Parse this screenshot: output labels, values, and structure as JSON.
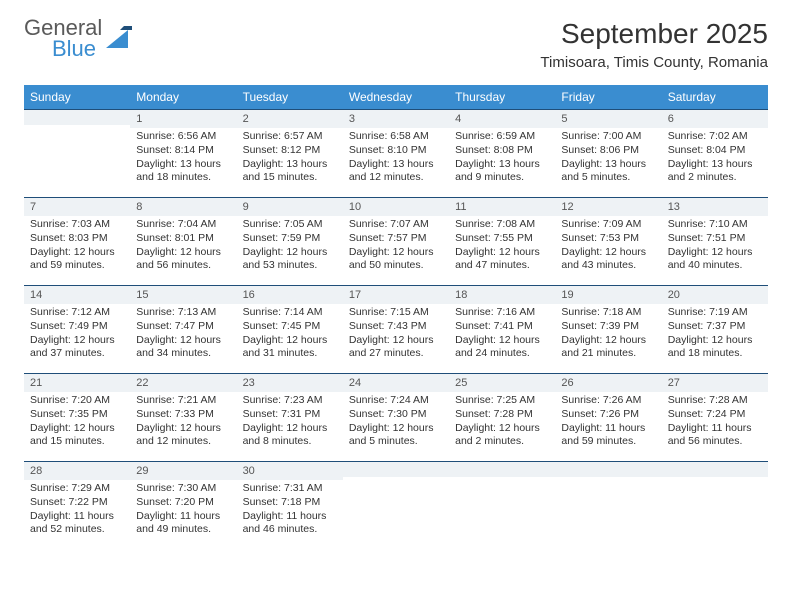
{
  "logo": {
    "line1": "General",
    "line2": "Blue",
    "color1": "#5a5a5a",
    "color2": "#3a8dd0"
  },
  "title": "September 2025",
  "location": "Timisoara, Timis County, Romania",
  "header_bg": "#3a8dd0",
  "header_fg": "#ffffff",
  "daynum_bg": "#eef2f5",
  "daynum_border": "#1f4e79",
  "weekdays": [
    "Sunday",
    "Monday",
    "Tuesday",
    "Wednesday",
    "Thursday",
    "Friday",
    "Saturday"
  ],
  "weeks": [
    [
      {
        "n": "",
        "lines": []
      },
      {
        "n": "1",
        "lines": [
          "Sunrise: 6:56 AM",
          "Sunset: 8:14 PM",
          "Daylight: 13 hours",
          "and 18 minutes."
        ]
      },
      {
        "n": "2",
        "lines": [
          "Sunrise: 6:57 AM",
          "Sunset: 8:12 PM",
          "Daylight: 13 hours",
          "and 15 minutes."
        ]
      },
      {
        "n": "3",
        "lines": [
          "Sunrise: 6:58 AM",
          "Sunset: 8:10 PM",
          "Daylight: 13 hours",
          "and 12 minutes."
        ]
      },
      {
        "n": "4",
        "lines": [
          "Sunrise: 6:59 AM",
          "Sunset: 8:08 PM",
          "Daylight: 13 hours",
          "and 9 minutes."
        ]
      },
      {
        "n": "5",
        "lines": [
          "Sunrise: 7:00 AM",
          "Sunset: 8:06 PM",
          "Daylight: 13 hours",
          "and 5 minutes."
        ]
      },
      {
        "n": "6",
        "lines": [
          "Sunrise: 7:02 AM",
          "Sunset: 8:04 PM",
          "Daylight: 13 hours",
          "and 2 minutes."
        ]
      }
    ],
    [
      {
        "n": "7",
        "lines": [
          "Sunrise: 7:03 AM",
          "Sunset: 8:03 PM",
          "Daylight: 12 hours",
          "and 59 minutes."
        ]
      },
      {
        "n": "8",
        "lines": [
          "Sunrise: 7:04 AM",
          "Sunset: 8:01 PM",
          "Daylight: 12 hours",
          "and 56 minutes."
        ]
      },
      {
        "n": "9",
        "lines": [
          "Sunrise: 7:05 AM",
          "Sunset: 7:59 PM",
          "Daylight: 12 hours",
          "and 53 minutes."
        ]
      },
      {
        "n": "10",
        "lines": [
          "Sunrise: 7:07 AM",
          "Sunset: 7:57 PM",
          "Daylight: 12 hours",
          "and 50 minutes."
        ]
      },
      {
        "n": "11",
        "lines": [
          "Sunrise: 7:08 AM",
          "Sunset: 7:55 PM",
          "Daylight: 12 hours",
          "and 47 minutes."
        ]
      },
      {
        "n": "12",
        "lines": [
          "Sunrise: 7:09 AM",
          "Sunset: 7:53 PM",
          "Daylight: 12 hours",
          "and 43 minutes."
        ]
      },
      {
        "n": "13",
        "lines": [
          "Sunrise: 7:10 AM",
          "Sunset: 7:51 PM",
          "Daylight: 12 hours",
          "and 40 minutes."
        ]
      }
    ],
    [
      {
        "n": "14",
        "lines": [
          "Sunrise: 7:12 AM",
          "Sunset: 7:49 PM",
          "Daylight: 12 hours",
          "and 37 minutes."
        ]
      },
      {
        "n": "15",
        "lines": [
          "Sunrise: 7:13 AM",
          "Sunset: 7:47 PM",
          "Daylight: 12 hours",
          "and 34 minutes."
        ]
      },
      {
        "n": "16",
        "lines": [
          "Sunrise: 7:14 AM",
          "Sunset: 7:45 PM",
          "Daylight: 12 hours",
          "and 31 minutes."
        ]
      },
      {
        "n": "17",
        "lines": [
          "Sunrise: 7:15 AM",
          "Sunset: 7:43 PM",
          "Daylight: 12 hours",
          "and 27 minutes."
        ]
      },
      {
        "n": "18",
        "lines": [
          "Sunrise: 7:16 AM",
          "Sunset: 7:41 PM",
          "Daylight: 12 hours",
          "and 24 minutes."
        ]
      },
      {
        "n": "19",
        "lines": [
          "Sunrise: 7:18 AM",
          "Sunset: 7:39 PM",
          "Daylight: 12 hours",
          "and 21 minutes."
        ]
      },
      {
        "n": "20",
        "lines": [
          "Sunrise: 7:19 AM",
          "Sunset: 7:37 PM",
          "Daylight: 12 hours",
          "and 18 minutes."
        ]
      }
    ],
    [
      {
        "n": "21",
        "lines": [
          "Sunrise: 7:20 AM",
          "Sunset: 7:35 PM",
          "Daylight: 12 hours",
          "and 15 minutes."
        ]
      },
      {
        "n": "22",
        "lines": [
          "Sunrise: 7:21 AM",
          "Sunset: 7:33 PM",
          "Daylight: 12 hours",
          "and 12 minutes."
        ]
      },
      {
        "n": "23",
        "lines": [
          "Sunrise: 7:23 AM",
          "Sunset: 7:31 PM",
          "Daylight: 12 hours",
          "and 8 minutes."
        ]
      },
      {
        "n": "24",
        "lines": [
          "Sunrise: 7:24 AM",
          "Sunset: 7:30 PM",
          "Daylight: 12 hours",
          "and 5 minutes."
        ]
      },
      {
        "n": "25",
        "lines": [
          "Sunrise: 7:25 AM",
          "Sunset: 7:28 PM",
          "Daylight: 12 hours",
          "and 2 minutes."
        ]
      },
      {
        "n": "26",
        "lines": [
          "Sunrise: 7:26 AM",
          "Sunset: 7:26 PM",
          "Daylight: 11 hours",
          "and 59 minutes."
        ]
      },
      {
        "n": "27",
        "lines": [
          "Sunrise: 7:28 AM",
          "Sunset: 7:24 PM",
          "Daylight: 11 hours",
          "and 56 minutes."
        ]
      }
    ],
    [
      {
        "n": "28",
        "lines": [
          "Sunrise: 7:29 AM",
          "Sunset: 7:22 PM",
          "Daylight: 11 hours",
          "and 52 minutes."
        ]
      },
      {
        "n": "29",
        "lines": [
          "Sunrise: 7:30 AM",
          "Sunset: 7:20 PM",
          "Daylight: 11 hours",
          "and 49 minutes."
        ]
      },
      {
        "n": "30",
        "lines": [
          "Sunrise: 7:31 AM",
          "Sunset: 7:18 PM",
          "Daylight: 11 hours",
          "and 46 minutes."
        ]
      },
      {
        "n": "",
        "lines": []
      },
      {
        "n": "",
        "lines": []
      },
      {
        "n": "",
        "lines": []
      },
      {
        "n": "",
        "lines": []
      }
    ]
  ]
}
